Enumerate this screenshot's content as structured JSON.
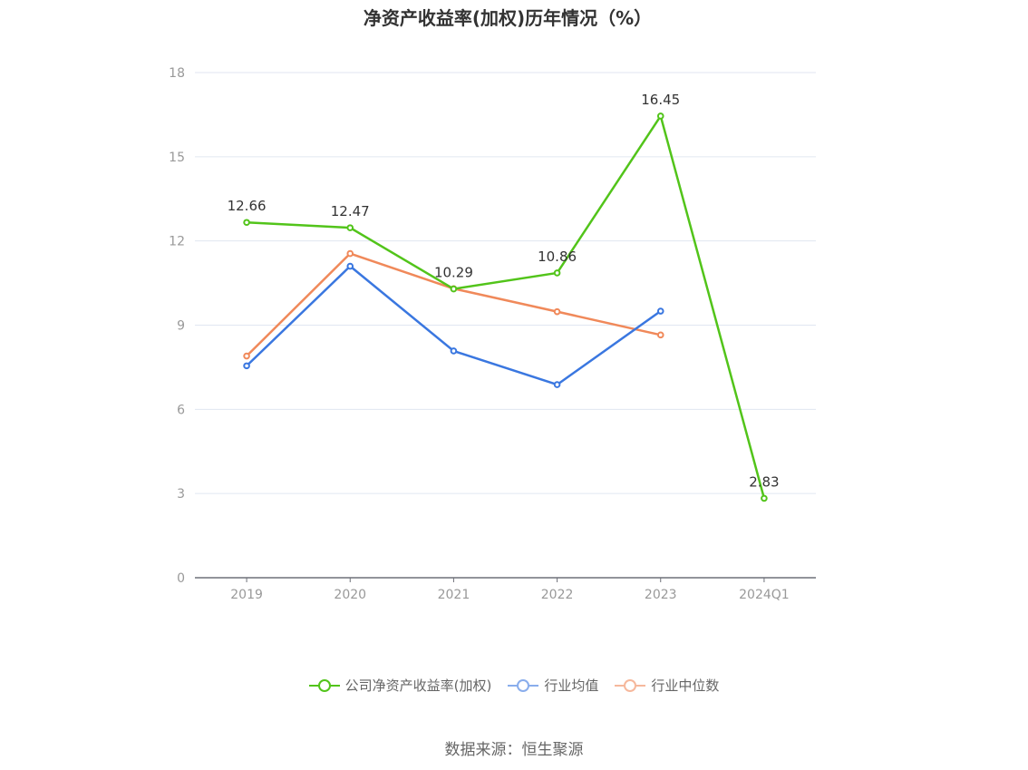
{
  "chart_data": {
    "type": "line",
    "title": "净资产收益率(加权)历年情况（%）",
    "categories": [
      "2019",
      "2020",
      "2021",
      "2022",
      "2023",
      "2024Q1"
    ],
    "ylim": [
      0,
      18
    ],
    "yticks": [
      0,
      3,
      6,
      9,
      12,
      15,
      18
    ],
    "grid": true,
    "legend_position": "bottom",
    "series": [
      {
        "name": "公司净资产收益率(加权)",
        "color": "#52c41a",
        "values": [
          12.66,
          12.47,
          10.29,
          10.86,
          16.45,
          2.83
        ],
        "labels": [
          "12.66",
          "12.47",
          "10.29",
          "10.86",
          "16.45",
          "2.83"
        ]
      },
      {
        "name": "行业均值",
        "color": "#3a77e0",
        "values": [
          7.55,
          11.1,
          8.08,
          6.88,
          9.5,
          null
        ]
      },
      {
        "name": "行业中位数",
        "color": "#f0895a",
        "values": [
          7.9,
          11.55,
          10.3,
          9.48,
          8.65,
          null
        ]
      }
    ],
    "source": "数据来源：恒生聚源"
  }
}
